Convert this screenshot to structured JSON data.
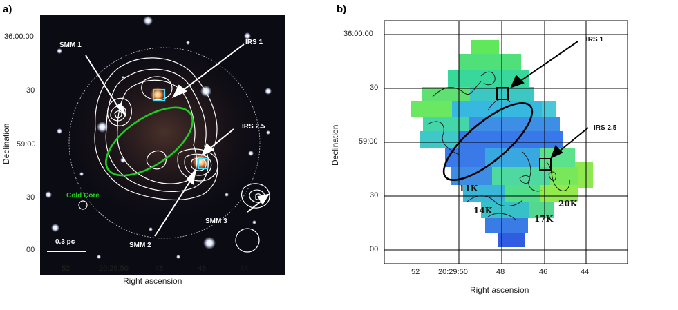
{
  "panel_a": {
    "label": "a)",
    "y_ticks": [
      "36:00:00",
      "30",
      "59:00",
      "30",
      "00"
    ],
    "x_ticks": [
      "52",
      "20:29:50",
      "48",
      "46",
      "44"
    ],
    "x_title": "Right ascension",
    "y_title": "Declination",
    "annotations": {
      "smm1": "SMM 1",
      "irs1": "IRS 1",
      "irs25": "IRS 2.5",
      "cold_core": "Cold Core",
      "smm2": "SMM 2",
      "smm3": "SMM 3",
      "scale_bar": "0.3 pc"
    }
  },
  "panel_b": {
    "label": "b)",
    "y_ticks": [
      "36:00:00",
      "30",
      "59:00",
      "30",
      "00"
    ],
    "x_ticks": [
      "52",
      "20:29:50",
      "48",
      "46",
      "44"
    ],
    "x_title": "Right ascension",
    "y_title": "Declination",
    "annotations": {
      "irs1": "IRS 1",
      "irs25": "IRS 2.5"
    },
    "temperatures": [
      "11K",
      "14K",
      "17K",
      "20K"
    ]
  },
  "colors": {
    "image_bg": "#0b0b14",
    "contour": "#ffffff",
    "cold_core": "#22cc22",
    "source_box": "#44e0ff"
  }
}
